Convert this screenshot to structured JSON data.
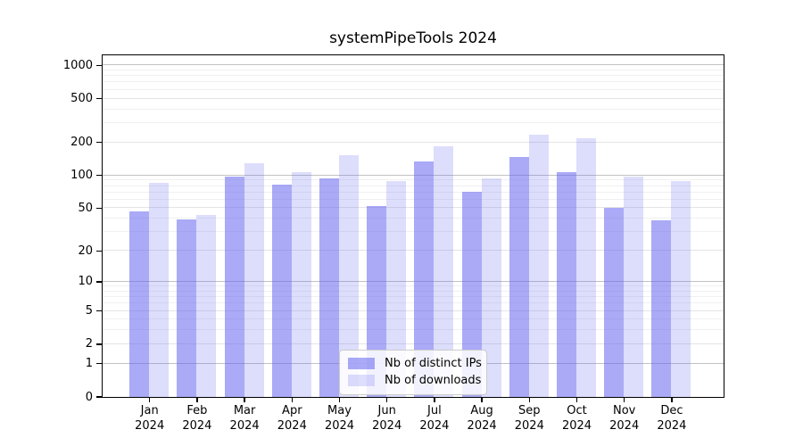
{
  "title": "systemPipeTools 2024",
  "chart_data": {
    "type": "bar",
    "title": "systemPipeTools 2024",
    "categories": [
      "Jan 2024",
      "Feb 2024",
      "Mar 2024",
      "Apr 2024",
      "May 2024",
      "Jun 2024",
      "Jul 2024",
      "Aug 2024",
      "Sep 2024",
      "Oct 2024",
      "Nov 2024",
      "Dec 2024"
    ],
    "series": [
      {
        "name": "Nb of distinct IPs",
        "color": "#6464f0",
        "alpha": 0.55,
        "values": [
          46,
          39,
          96,
          81,
          94,
          52,
          132,
          70,
          145,
          107,
          50,
          38
        ]
      },
      {
        "name": "Nb of downloads",
        "color": "#6464f0",
        "alpha": 0.22,
        "values": [
          84,
          43,
          127,
          107,
          153,
          88,
          184,
          94,
          231,
          217,
          97,
          88
        ]
      }
    ],
    "xlabel": "",
    "ylabel": "",
    "y_ticks": [
      0,
      1,
      2,
      5,
      10,
      20,
      50,
      100,
      200,
      500,
      1000
    ],
    "y_scale": "log10(value+1)",
    "ylim": [
      0,
      1250
    ],
    "grid": true,
    "legend_position": "lower center",
    "colors": {
      "bar_ips_rendered": "#aaaaf7",
      "bar_downloads_rendered": "#ddddfc",
      "grid_major": "#c2c2c2",
      "grid_minor": "#f0f0f0",
      "axis": "#000000"
    }
  }
}
